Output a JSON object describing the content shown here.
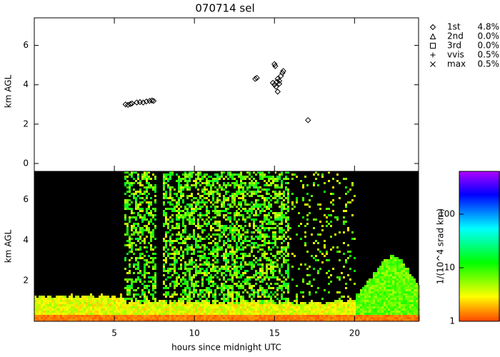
{
  "chart_data": [
    {
      "type": "scatter",
      "title": "070714 sel",
      "ylabel": "km AGL",
      "xlim": [
        0,
        24
      ],
      "ylim": [
        -0.4,
        7.4
      ],
      "xticks": [
        5,
        10,
        15,
        20
      ],
      "yticks": [
        0,
        2,
        4,
        6
      ],
      "color": "#000000",
      "series": [
        {
          "name": "1st",
          "symbol": "diamond",
          "value_label": "4.8%",
          "x": [
            5.7,
            5.85,
            6.0,
            6.1,
            6.4,
            6.6,
            6.8,
            7.0,
            7.2,
            7.35,
            7.45,
            13.8,
            13.9,
            15.0,
            15.05,
            14.9,
            15.0,
            15.15,
            15.2,
            15.3,
            15.4,
            15.5,
            15.55,
            15.3,
            15.1,
            15.2,
            17.1
          ],
          "y": [
            3.0,
            2.98,
            3.02,
            3.05,
            3.1,
            3.12,
            3.1,
            3.15,
            3.18,
            3.2,
            3.18,
            4.3,
            4.35,
            5.05,
            4.95,
            4.1,
            4.0,
            4.15,
            4.3,
            4.2,
            4.45,
            4.6,
            4.7,
            4.05,
            3.9,
            3.65,
            2.2
          ]
        },
        {
          "name": "2nd",
          "symbol": "triangle",
          "value_label": "0.0%",
          "x": [],
          "y": []
        },
        {
          "name": "3rd",
          "symbol": "square",
          "value_label": "0.0%",
          "x": [],
          "y": []
        },
        {
          "name": "vvis",
          "symbol": "plus",
          "value_label": "0.5%",
          "x": [],
          "y": []
        },
        {
          "name": "max",
          "symbol": "cross",
          "value_label": "0.5%",
          "x": [],
          "y": []
        }
      ]
    },
    {
      "type": "heatmap",
      "ylabel": "km AGL",
      "xlabel": "hours since midnight UTC",
      "xlim": [
        0,
        24
      ],
      "ylim": [
        0,
        7.4
      ],
      "xticks": [
        5,
        10,
        15,
        20
      ],
      "yticks": [
        2,
        4,
        6
      ],
      "colorbar": {
        "label": "1/(10^4 srad km)",
        "log": true,
        "clim": [
          1,
          631
        ],
        "ticks": [
          1,
          10,
          100
        ]
      }
    }
  ]
}
